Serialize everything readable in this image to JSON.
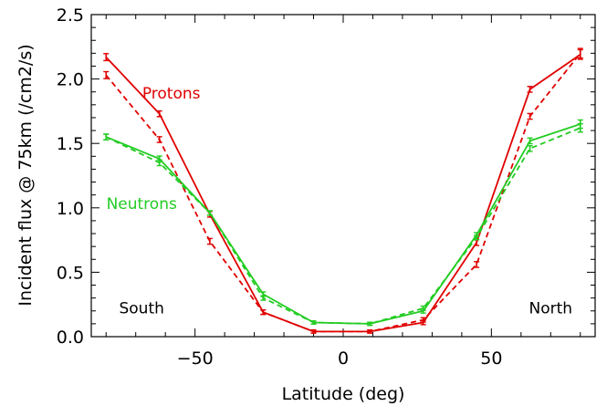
{
  "chart_data": {
    "type": "line",
    "title": "",
    "xlabel": "Latitude (deg)",
    "ylabel": "Incident flux @ 75km (/cm2/s)",
    "xlim": [
      -85,
      85
    ],
    "ylim": [
      0.0,
      2.5
    ],
    "xticks": [
      -50,
      0,
      50
    ],
    "xtick_labels": [
      "−50",
      "0",
      "50"
    ],
    "yticks": [
      0.0,
      0.5,
      1.0,
      1.5,
      2.0,
      2.5
    ],
    "ytick_labels": [
      "0.0",
      "0.5",
      "1.0",
      "1.5",
      "2.0",
      "2.5"
    ],
    "grid": false,
    "series": [
      {
        "name": "Protons",
        "color": "#e00000",
        "style": "solid",
        "x": [
          -80,
          -62,
          -45,
          -27,
          -10,
          9,
          27,
          45,
          63,
          80
        ],
        "y": [
          2.17,
          1.73,
          0.95,
          0.19,
          0.04,
          0.04,
          0.11,
          0.73,
          1.92,
          2.19
        ],
        "err": [
          0.02,
          0.015,
          0.015,
          0.01,
          0.005,
          0.005,
          0.01,
          0.015,
          0.015,
          0.03
        ]
      },
      {
        "name": "",
        "color": "#e00000",
        "style": "dashed",
        "x": [
          -80,
          -62,
          -45,
          -27,
          -10,
          9,
          27,
          45,
          63,
          80
        ],
        "y": [
          2.03,
          1.53,
          0.74,
          0.19,
          0.04,
          0.04,
          0.13,
          0.56,
          1.71,
          2.2
        ],
        "err": [
          0.02,
          0.015,
          0.015,
          0.01,
          0.005,
          0.005,
          0.01,
          0.015,
          0.015,
          0.03
        ]
      },
      {
        "name": "Neutrons",
        "color": "#22cc22",
        "style": "solid",
        "x": [
          -80,
          -62,
          -45,
          -27,
          -10,
          9,
          27,
          45,
          63,
          80
        ],
        "y": [
          1.55,
          1.38,
          0.96,
          0.33,
          0.11,
          0.1,
          0.2,
          0.79,
          1.52,
          1.65
        ],
        "err": [
          0.015,
          0.015,
          0.01,
          0.01,
          0.005,
          0.005,
          0.01,
          0.01,
          0.015,
          0.025
        ]
      },
      {
        "name": "",
        "color": "#22cc22",
        "style": "dashed",
        "x": [
          -80,
          -62,
          -45,
          -27,
          -10,
          9,
          27,
          45,
          63,
          80
        ],
        "y": [
          1.55,
          1.35,
          0.96,
          0.3,
          0.11,
          0.1,
          0.22,
          0.77,
          1.46,
          1.62
        ],
        "err": [
          0.015,
          0.015,
          0.01,
          0.01,
          0.005,
          0.005,
          0.01,
          0.01,
          0.015,
          0.025
        ]
      }
    ],
    "annotations": [
      {
        "text": "Protons",
        "color": "#e00000",
        "x": -58,
        "y": 1.85
      },
      {
        "text": "Neutrons",
        "color": "#22cc22",
        "x": -68,
        "y": 0.99
      },
      {
        "text": "South",
        "color": "#000000",
        "x": -68,
        "y": 0.18
      },
      {
        "text": "North",
        "color": "#000000",
        "x": 70,
        "y": 0.18
      }
    ]
  }
}
